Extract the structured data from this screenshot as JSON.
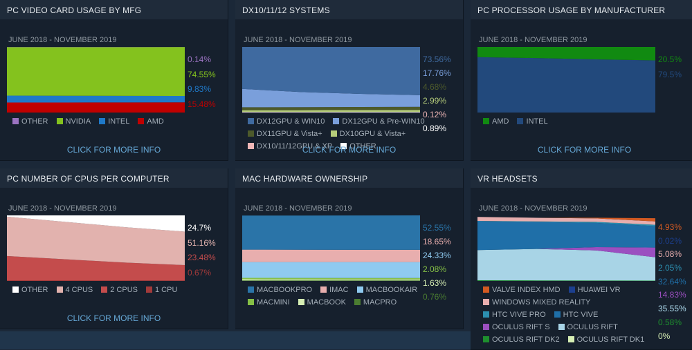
{
  "more_label": "CLICK FOR MORE INFO",
  "chart_data": [
    {
      "id": "gpu",
      "type": "area",
      "title": "PC VIDEO CARD USAGE BY MFG",
      "subtitle": "JUNE 2018 - NOVEMBER 2019",
      "stacked": true,
      "ylim": [
        0,
        100
      ],
      "series": [
        {
          "name": "OTHER",
          "color": "#9b73c1",
          "label": "0.14%",
          "values": [
            0.2,
            0.2,
            0.2,
            0.14
          ]
        },
        {
          "name": "NVIDIA",
          "color": "#84c21e",
          "label": "74.55%",
          "values": [
            74.0,
            74.3,
            74.4,
            74.55
          ]
        },
        {
          "name": "INTEL",
          "color": "#1f79c8",
          "label": "9.83%",
          "values": [
            10.5,
            10.2,
            10.0,
            9.83
          ]
        },
        {
          "name": "AMD",
          "color": "#c00000",
          "label": "15.48%",
          "values": [
            15.3,
            15.3,
            15.4,
            15.48
          ]
        }
      ]
    },
    {
      "id": "dx",
      "type": "area",
      "title": "DX10/11/12 SYSTEMS",
      "subtitle": "JUNE 2018 - NOVEMBER 2019",
      "stacked": true,
      "ylim": [
        0,
        100
      ],
      "series": [
        {
          "name": "DX12GPU & WIN10",
          "color": "#3f6aa0",
          "label": "73.56%",
          "values": [
            65,
            70,
            72,
            73.56
          ]
        },
        {
          "name": "DX12GPU & Pre-WIN10",
          "color": "#7a9fdb",
          "label": "17.76%",
          "values": [
            28,
            23,
            20,
            17.76
          ]
        },
        {
          "name": "DX11GPU & Vista+",
          "color": "#4d5a2b",
          "label": "4.68%",
          "values": [
            4.5,
            4.6,
            4.6,
            4.68
          ]
        },
        {
          "name": "DX10GPU & Vista+",
          "color": "#b5cc7a",
          "label": "2.99%",
          "values": [
            2.5,
            2.6,
            2.8,
            2.99
          ]
        },
        {
          "name": "DX10/11/12GPU & XP",
          "color": "#f0b7b7",
          "label": "0.12%",
          "values": [
            0.2,
            0.15,
            0.13,
            0.12
          ]
        },
        {
          "name": "OTHER",
          "color": "#ffffff",
          "label": "0.89%",
          "values": [
            0.8,
            0.85,
            0.87,
            0.89
          ]
        }
      ]
    },
    {
      "id": "cpu",
      "type": "area",
      "title": "PC PROCESSOR USAGE BY MANUFACTURER",
      "subtitle": "JUNE 2018 - NOVEMBER 2019",
      "stacked": true,
      "ylim": [
        0,
        100
      ],
      "series": [
        {
          "name": "AMD",
          "color": "#118a11",
          "label": "20.5%",
          "values": [
            15.5,
            17,
            19,
            20.5
          ]
        },
        {
          "name": "INTEL",
          "color": "#22497c",
          "label": "79.5%",
          "values": [
            84.5,
            83,
            81,
            79.5
          ]
        }
      ]
    },
    {
      "id": "cores",
      "type": "area",
      "title": "PC NUMBER OF CPUS PER COMPUTER",
      "subtitle": "JUNE 2018 - NOVEMBER 2019",
      "stacked": true,
      "ylim": [
        0,
        100
      ],
      "series": [
        {
          "name": "OTHER",
          "color": "#ffffff",
          "label": "24.7%",
          "values": [
            2,
            10,
            18,
            24.7
          ]
        },
        {
          "name": "4 CPUS",
          "color": "#e2b2ae",
          "label": "51.16%",
          "values": [
            60,
            57,
            54,
            51.16
          ]
        },
        {
          "name": "2 CPUS",
          "color": "#c44c4c",
          "label": "23.48%",
          "values": [
            37,
            32,
            27,
            23.48
          ]
        },
        {
          "name": "1 CPU",
          "color": "#a23a3a",
          "label": "0.67%",
          "values": [
            1,
            1,
            1,
            0.67
          ]
        }
      ]
    },
    {
      "id": "mac",
      "type": "area",
      "title": "MAC HARDWARE OWNERSHIP",
      "subtitle": "JUNE 2018 - NOVEMBER 2019",
      "stacked": true,
      "ylim": [
        0,
        100
      ],
      "series": [
        {
          "name": "MACBOOKPRO",
          "color": "#2a74a8",
          "label": "52.55%",
          "values": [
            52,
            52.2,
            52.4,
            52.55
          ]
        },
        {
          "name": "IMAC",
          "color": "#e8aeae",
          "label": "18.65%",
          "values": [
            19,
            18.8,
            18.7,
            18.65
          ]
        },
        {
          "name": "MACBOOKAIR",
          "color": "#8fcaf0",
          "label": "24.33%",
          "values": [
            24,
            24.2,
            24.3,
            24.33
          ]
        },
        {
          "name": "MACMINI",
          "color": "#86c046",
          "label": "2.08%",
          "values": [
            2.2,
            2.1,
            2.1,
            2.08
          ]
        },
        {
          "name": "MACBOOK",
          "color": "#d6eeb4",
          "label": "1.63%",
          "values": [
            1.8,
            1.7,
            1.65,
            1.63
          ]
        },
        {
          "name": "MACPRO",
          "color": "#4b7d31",
          "label": "0.76%",
          "values": [
            0.8,
            0.78,
            0.77,
            0.76
          ]
        }
      ]
    },
    {
      "id": "vr",
      "type": "area",
      "title": "VR HEADSETS",
      "subtitle": "JUNE 2018 - NOVEMBER 2019",
      "stacked": true,
      "ylim": [
        0,
        100
      ],
      "series": [
        {
          "name": "VALVE INDEX HMD",
          "color": "#d35a22",
          "label": "4.93%",
          "values": [
            0,
            0,
            1,
            4.93
          ]
        },
        {
          "name": "HUAWEI VR",
          "color": "#1c3f8f",
          "label": "0.02%",
          "values": [
            0,
            0,
            0.01,
            0.02
          ]
        },
        {
          "name": "WINDOWS MIXED REALITY",
          "color": "#e8aeae",
          "label": "5.08%",
          "values": [
            6,
            5.5,
            5.3,
            5.08
          ]
        },
        {
          "name": "HTC VIVE PRO",
          "color": "#2c8fb0",
          "label": "2.05%",
          "values": [
            0.5,
            1,
            1.5,
            2.05
          ]
        },
        {
          "name": "HTC VIVE",
          "color": "#1f6fa8",
          "label": "32.64%",
          "values": [
            44,
            41,
            37,
            32.64
          ]
        },
        {
          "name": "OCULUS RIFT S",
          "color": "#9b4fc0",
          "label": "14.83%",
          "values": [
            0,
            0,
            5,
            14.83
          ]
        },
        {
          "name": "OCULUS RIFT",
          "color": "#a8d4e6",
          "label": "35.55%",
          "values": [
            46,
            48,
            46,
            35.55
          ]
        },
        {
          "name": "OCULUS RIFT DK2",
          "color": "#1e8f2e",
          "label": "0.58%",
          "values": [
            1,
            0.8,
            0.6,
            0.58
          ]
        },
        {
          "name": "OCULUS RIFT DK1",
          "color": "#d6eeb4",
          "label": "0%",
          "values": [
            0.1,
            0.05,
            0,
            0
          ]
        }
      ]
    }
  ]
}
